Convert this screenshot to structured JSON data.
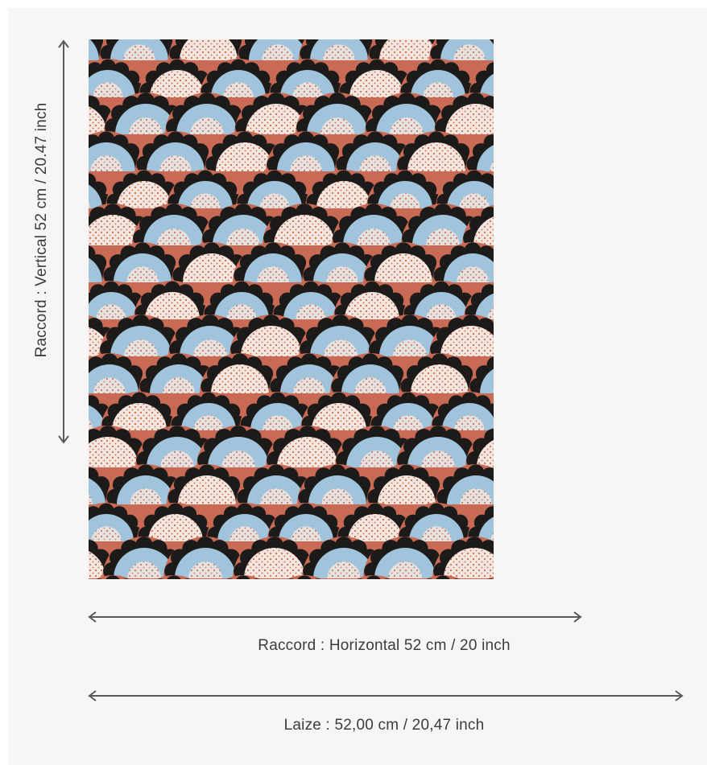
{
  "measurements": {
    "vertical_repeat": "Raccord : Vertical 52 cm / 20.47 inch",
    "horizontal_repeat": "Raccord : Horizontal 52 cm / 20 inch",
    "width": "Laize : 52,00 cm / 20,47 inch"
  },
  "colors": {
    "background": "#f7f6f4",
    "pattern_red": "#c96a55",
    "pattern_blue": "#9fc4dc",
    "pattern_black": "#1d1a1a",
    "pattern_cream": "#f3e6df",
    "arrow": "#5a5a5a"
  },
  "pattern": {
    "name": "scalloped-cloud-wallpaper-pattern"
  }
}
